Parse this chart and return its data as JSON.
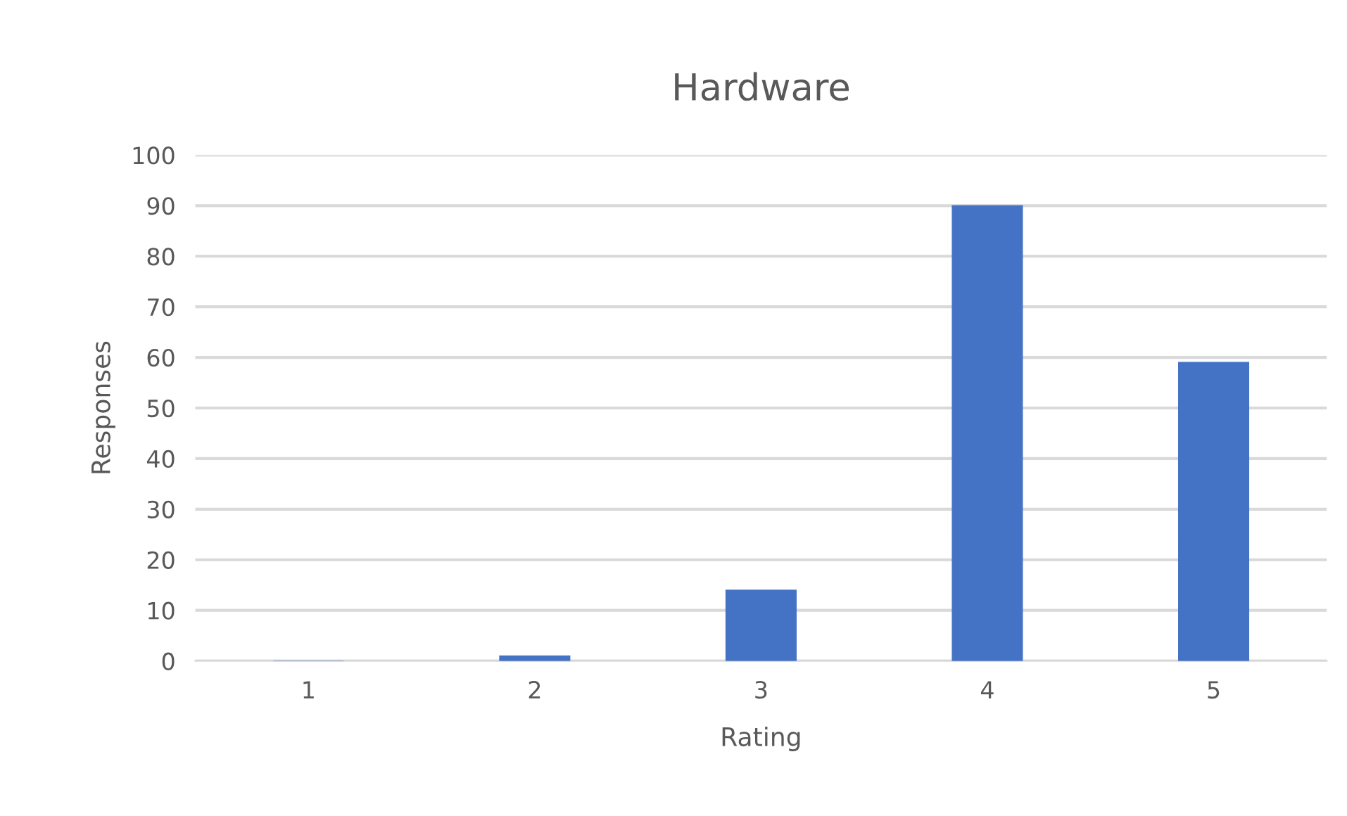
{
  "chart_data": {
    "type": "bar",
    "title": "Hardware",
    "xlabel": "Rating",
    "ylabel": "Responses",
    "categories": [
      "1",
      "2",
      "3",
      "4",
      "5"
    ],
    "values": [
      0,
      1,
      14,
      90,
      59
    ],
    "color": "#4472c4",
    "ylim": [
      0,
      100
    ],
    "yticks": [
      0,
      10,
      20,
      30,
      40,
      50,
      60,
      70,
      80,
      90,
      100
    ],
    "grid": "y",
    "legend": false
  }
}
